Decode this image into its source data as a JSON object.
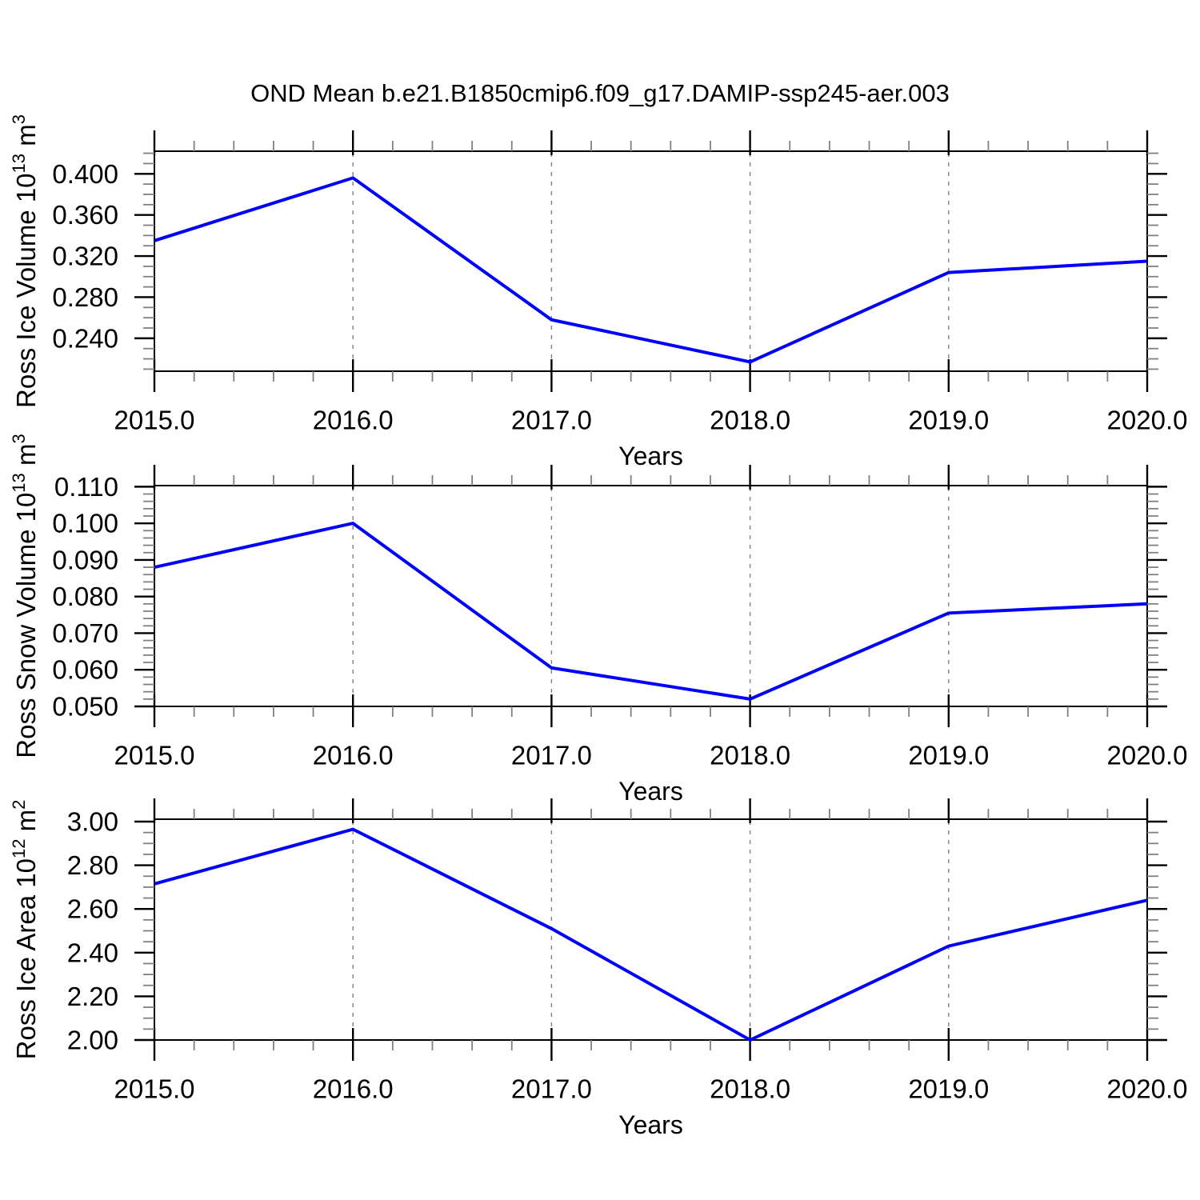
{
  "title": "OND Mean b.e21.B1850cmip6.f09_g17.DAMIP-ssp245-aer.003",
  "colors": {
    "line": "#0000ff",
    "axis": "#000000",
    "minor_tick": "#808080",
    "grid": "#808080",
    "background": "#ffffff"
  },
  "chart_data": [
    {
      "type": "line",
      "name": "ross-ice-volume",
      "ylabel": "Ross Ice Volume 10^13 m^3",
      "ylabel_parts": [
        {
          "t": "Ross Ice Volume 10"
        },
        {
          "t": "13",
          "sup": true
        },
        {
          "t": " m"
        },
        {
          "t": "3",
          "sup": true
        }
      ],
      "xlabel": "Years",
      "x": [
        2015.0,
        2016.0,
        2017.0,
        2018.0,
        2019.0,
        2020.0
      ],
      "values": [
        0.335,
        0.396,
        0.258,
        0.217,
        0.304,
        0.315
      ],
      "xlim": [
        2015.0,
        2020.0
      ],
      "ylim": [
        0.208,
        0.422
      ],
      "xticks": [
        2015,
        2016,
        2017,
        2018,
        2019,
        2020
      ],
      "xtick_labels": [
        "2015.0",
        "2016.0",
        "2017.0",
        "2018.0",
        "2019.0",
        "2020.0"
      ],
      "x_minor_step": 0.2,
      "yticks": [
        0.24,
        0.28,
        0.32,
        0.36,
        0.4
      ],
      "ytick_labels": [
        "0.240",
        "0.280",
        "0.320",
        "0.360",
        "0.400"
      ],
      "y_minor_step": 0.01,
      "grid_x": [
        2016,
        2017,
        2018,
        2019
      ],
      "grid_on": true,
      "legend": "none"
    },
    {
      "type": "line",
      "name": "ross-snow-volume",
      "ylabel": "Ross Snow Volume 10^13 m^3",
      "ylabel_parts": [
        {
          "t": "Ross Snow Volume 10"
        },
        {
          "t": "13",
          "sup": true
        },
        {
          "t": " m"
        },
        {
          "t": "3",
          "sup": true
        }
      ],
      "xlabel": "Years",
      "x": [
        2015.0,
        2016.0,
        2017.0,
        2018.0,
        2019.0,
        2020.0
      ],
      "values": [
        0.088,
        0.1,
        0.0605,
        0.052,
        0.0755,
        0.078
      ],
      "xlim": [
        2015.0,
        2020.0
      ],
      "ylim": [
        0.05,
        0.1103
      ],
      "xticks": [
        2015,
        2016,
        2017,
        2018,
        2019,
        2020
      ],
      "xtick_labels": [
        "2015.0",
        "2016.0",
        "2017.0",
        "2018.0",
        "2019.0",
        "2020.0"
      ],
      "x_minor_step": 0.2,
      "yticks": [
        0.05,
        0.06,
        0.07,
        0.08,
        0.09,
        0.1,
        0.11
      ],
      "ytick_labels": [
        "0.050",
        "0.060",
        "0.070",
        "0.080",
        "0.090",
        "0.100",
        "0.110"
      ],
      "y_minor_step": 0.002,
      "grid_x": [
        2016,
        2017,
        2018,
        2019
      ],
      "grid_on": true,
      "legend": "none"
    },
    {
      "type": "line",
      "name": "ross-ice-area",
      "ylabel": "Ross Ice Area 10^12 m^2",
      "ylabel_parts": [
        {
          "t": "Ross Ice Area 10"
        },
        {
          "t": "12",
          "sup": true
        },
        {
          "t": " m"
        },
        {
          "t": "2",
          "sup": true
        }
      ],
      "xlabel": "Years",
      "x": [
        2015.0,
        2016.0,
        2017.0,
        2018.0,
        2019.0,
        2020.0
      ],
      "values": [
        2.715,
        2.965,
        2.51,
        2.0,
        2.43,
        2.64
      ],
      "xlim": [
        2015.0,
        2020.0
      ],
      "ylim": [
        2.0,
        3.011
      ],
      "xticks": [
        2015,
        2016,
        2017,
        2018,
        2019,
        2020
      ],
      "xtick_labels": [
        "2015.0",
        "2016.0",
        "2017.0",
        "2018.0",
        "2019.0",
        "2020.0"
      ],
      "x_minor_step": 0.2,
      "yticks": [
        2.0,
        2.2,
        2.4,
        2.6,
        2.8,
        3.0
      ],
      "ytick_labels": [
        "2.00",
        "2.20",
        "2.40",
        "2.60",
        "2.80",
        "3.00"
      ],
      "y_minor_step": 0.05,
      "grid_x": [
        2016,
        2017,
        2018,
        2019
      ],
      "grid_on": true,
      "legend": "none"
    }
  ]
}
